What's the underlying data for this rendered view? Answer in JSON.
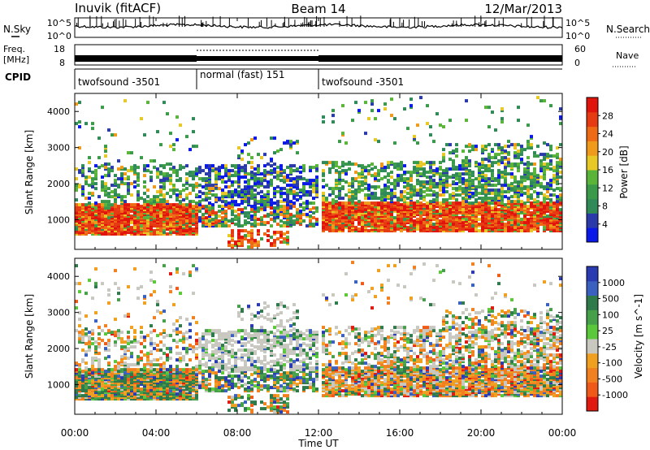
{
  "header": {
    "station": "Inuvik (fitACF)",
    "beam": "Beam 14",
    "date": "12/Mar/2013"
  },
  "noise_panel": {
    "left_label": "N.Sky",
    "right_label": "N.Search",
    "tick_top": "10^5",
    "tick_bottom": "10^0"
  },
  "freq_panel": {
    "left_label_1": "Freq.",
    "left_label_2": "[MHz]",
    "right_label": "Nave",
    "tick_left_top": "18",
    "tick_left_bottom": "8",
    "tick_right_top": "60",
    "tick_right_bottom": "0"
  },
  "cpid_panel": {
    "label": "CPID",
    "segments": [
      {
        "name": "twofsound -3501",
        "start_h": 0,
        "end_h": 6
      },
      {
        "name": "normal (fast) 151",
        "start_h": 6,
        "end_h": 12
      },
      {
        "name": "twofsound -3501",
        "start_h": 12,
        "end_h": 24
      }
    ]
  },
  "time_axis": {
    "label": "Time UT",
    "ticks": [
      "00:00",
      "04:00",
      "08:00",
      "12:00",
      "16:00",
      "20:00",
      "00:00"
    ]
  },
  "chart_data": [
    {
      "type": "heatmap",
      "ylabel": "Slant Range [km]",
      "y_ticks": [
        1000,
        2000,
        3000,
        4000
      ],
      "xlim_hours": [
        0,
        24
      ],
      "ylim_km": [
        180,
        4500
      ],
      "colorbar": {
        "label": "Power [dB]",
        "ticks": [
          4,
          8,
          12,
          16,
          20,
          24,
          28
        ],
        "colors": [
          "#0a18e8",
          "#2a3aa8",
          "#2f8a58",
          "#3a9a4a",
          "#5ab43a",
          "#e8c826",
          "#f09a1c",
          "#ee6a14",
          "#e63a12",
          "#e0140c"
        ]
      },
      "features": [
        {
          "hours": [
            0,
            6
          ],
          "range_km": [
            650,
            1500
          ],
          "level": "24-30 dB"
        },
        {
          "hours": [
            6,
            12
          ],
          "range_km": [
            200,
            3200
          ],
          "level": "8-24 dB patchy"
        },
        {
          "hours": [
            12,
            24
          ],
          "range_km": [
            700,
            1500
          ],
          "level": "20-30 dB"
        },
        {
          "hours": [
            17,
            24
          ],
          "range_km": [
            1500,
            3000
          ],
          "level": "10-20 dB"
        }
      ]
    },
    {
      "type": "heatmap",
      "ylabel": "Slant Range [km]",
      "y_ticks": [
        1000,
        2000,
        3000,
        4000
      ],
      "xlim_hours": [
        0,
        24
      ],
      "ylim_km": [
        180,
        4500
      ],
      "colorbar": {
        "label": "Velocity [m s^-1]",
        "ticks": [
          1000,
          500,
          100,
          25,
          -25,
          -100,
          -500,
          -1000
        ],
        "colors": [
          "#2a3ab0",
          "#3a60c0",
          "#2f7a4a",
          "#46a04a",
          "#5ac83a",
          "#c8c8c0",
          "#f0a020",
          "#f08020",
          "#f05a18",
          "#e01a10"
        ]
      },
      "features": [
        {
          "hours": [
            0,
            6
          ],
          "range_km": [
            600,
            1400
          ],
          "level": "mixed -500 to 500"
        },
        {
          "hours": [
            6,
            12
          ],
          "range_km": [
            1600,
            3100
          ],
          "level": "ground scatter"
        },
        {
          "hours": [
            12,
            24
          ],
          "range_km": [
            700,
            1500
          ],
          "level": "-500 to 100"
        },
        {
          "hours": [
            18,
            24
          ],
          "range_km": [
            1100,
            1800
          ],
          "level": "ground scatter"
        }
      ]
    }
  ]
}
